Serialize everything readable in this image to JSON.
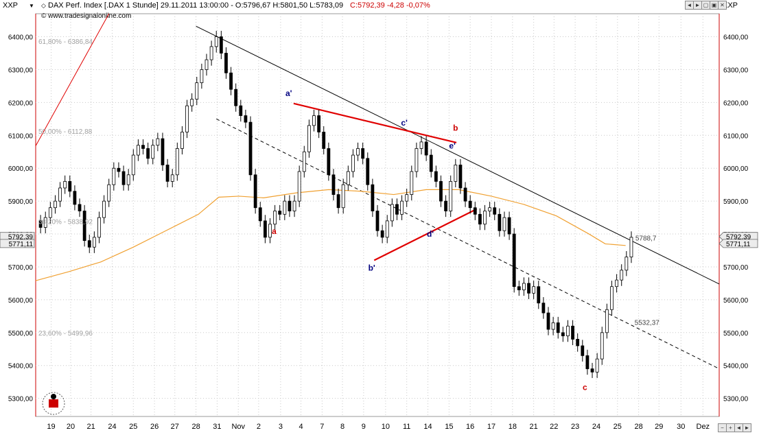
{
  "header": {
    "symbol_left": "XXP",
    "symbol_right": "XXP",
    "dropdown_arrow": "▼",
    "info_prefix": "DAX Perf. Index [.DAX  1 Stunde] 29.11.2011 13:00:00 - O:5796,67 H:5801,50 L:5783,09",
    "info_close": "C:5792,39 -4,28 -0,07%",
    "source": "www.tradesignalonline.com",
    "window_controls": [
      "◄",
      "►",
      "▢",
      "▣",
      "✕"
    ],
    "bottom_controls": [
      "−",
      "+",
      "◄",
      "►"
    ]
  },
  "chart_data": {
    "type": "candlestick",
    "title": "DAX Perf. Index [.DAX  1 Stunde]",
    "ylim": [
      5245,
      6470
    ],
    "y_ticks": [
      5300,
      5400,
      5500,
      5600,
      5700,
      5800,
      5900,
      6000,
      6100,
      6200,
      6300,
      6400
    ],
    "y_tick_labels": [
      "5300,00",
      "5400,00",
      "5500,00",
      "5600,00",
      "5700,00",
      "5800,00",
      "5900,00",
      "6000,00",
      "6100,00",
      "6200,00",
      "6300,00",
      "6400,00"
    ],
    "x_ticks": [
      "19",
      "20",
      "21",
      "24",
      "25",
      "26",
      "27",
      "28",
      "31",
      "Nov",
      "2",
      "3",
      "4",
      "7",
      "8",
      "9",
      "10",
      "11",
      "14",
      "15",
      "16",
      "17",
      "18",
      "21",
      "22",
      "23",
      "24",
      "25",
      "28",
      "29",
      "30",
      "Dez"
    ],
    "x_tick_pos": [
      1.9,
      4.3,
      6.8,
      9.4,
      12.0,
      14.6,
      17.1,
      19.7,
      22.3,
      24.9,
      27.4,
      30.1,
      32.6,
      35.2,
      37.7,
      40.3,
      43.0,
      45.6,
      48.2,
      50.8,
      53.4,
      56.0,
      58.6,
      61.2,
      63.7,
      66.3,
      68.9,
      71.5,
      74.1,
      76.6,
      79.3,
      82.0
    ],
    "x_range": [
      0,
      84
    ],
    "candles_close_path": [
      [
        0.0,
        5840
      ],
      [
        0.6,
        5820
      ],
      [
        1.2,
        5850
      ],
      [
        1.8,
        5880
      ],
      [
        2.4,
        5900
      ],
      [
        3.0,
        5940
      ],
      [
        3.6,
        5960
      ],
      [
        4.2,
        5930
      ],
      [
        4.8,
        5890
      ],
      [
        5.4,
        5870
      ],
      [
        6.0,
        5780
      ],
      [
        6.6,
        5760
      ],
      [
        7.2,
        5790
      ],
      [
        7.8,
        5850
      ],
      [
        8.4,
        5900
      ],
      [
        9.0,
        5950
      ],
      [
        9.6,
        6000
      ],
      [
        10.2,
        5990
      ],
      [
        10.8,
        5950
      ],
      [
        11.4,
        5980
      ],
      [
        12.0,
        6040
      ],
      [
        12.6,
        6070
      ],
      [
        13.2,
        6060
      ],
      [
        13.8,
        6030
      ],
      [
        14.4,
        6070
      ],
      [
        15.0,
        6090
      ],
      [
        15.6,
        6010
      ],
      [
        16.2,
        5960
      ],
      [
        16.8,
        5980
      ],
      [
        17.4,
        6060
      ],
      [
        18.0,
        6110
      ],
      [
        18.6,
        6190
      ],
      [
        19.2,
        6210
      ],
      [
        19.8,
        6260
      ],
      [
        20.4,
        6300
      ],
      [
        21.0,
        6330
      ],
      [
        21.6,
        6370
      ],
      [
        22.2,
        6400
      ],
      [
        22.8,
        6350
      ],
      [
        23.4,
        6290
      ],
      [
        24.0,
        6240
      ],
      [
        24.6,
        6190
      ],
      [
        25.2,
        6160
      ],
      [
        25.8,
        6140
      ],
      [
        26.4,
        5980
      ],
      [
        27.0,
        5880
      ],
      [
        27.6,
        5840
      ],
      [
        28.2,
        5790
      ],
      [
        28.8,
        5830
      ],
      [
        29.4,
        5870
      ],
      [
        30.0,
        5860
      ],
      [
        30.6,
        5900
      ],
      [
        31.2,
        5870
      ],
      [
        31.8,
        5900
      ],
      [
        32.4,
        5990
      ],
      [
        33.0,
        6050
      ],
      [
        33.6,
        6130
      ],
      [
        34.2,
        6160
      ],
      [
        34.8,
        6110
      ],
      [
        35.4,
        6060
      ],
      [
        36.0,
        5980
      ],
      [
        36.6,
        5920
      ],
      [
        37.2,
        5880
      ],
      [
        37.8,
        5950
      ],
      [
        38.4,
        5990
      ],
      [
        39.0,
        6040
      ],
      [
        39.6,
        6060
      ],
      [
        40.2,
        6030
      ],
      [
        40.8,
        5950
      ],
      [
        41.4,
        5870
      ],
      [
        42.0,
        5810
      ],
      [
        42.6,
        5790
      ],
      [
        43.2,
        5840
      ],
      [
        43.8,
        5890
      ],
      [
        44.4,
        5860
      ],
      [
        45.0,
        5900
      ],
      [
        45.6,
        5920
      ],
      [
        46.2,
        5990
      ],
      [
        46.8,
        6060
      ],
      [
        47.4,
        6080
      ],
      [
        48.0,
        6040
      ],
      [
        48.6,
        5990
      ],
      [
        49.2,
        5960
      ],
      [
        49.8,
        5900
      ],
      [
        50.4,
        5870
      ],
      [
        51.0,
        5960
      ],
      [
        51.6,
        6010
      ],
      [
        52.2,
        5940
      ],
      [
        52.8,
        5900
      ],
      [
        53.4,
        5880
      ],
      [
        54.0,
        5860
      ],
      [
        54.6,
        5830
      ],
      [
        55.2,
        5870
      ],
      [
        55.8,
        5880
      ],
      [
        56.4,
        5860
      ],
      [
        57.0,
        5810
      ],
      [
        57.6,
        5850
      ],
      [
        58.2,
        5800
      ],
      [
        58.8,
        5640
      ],
      [
        59.4,
        5630
      ],
      [
        60.0,
        5650
      ],
      [
        60.6,
        5620
      ],
      [
        61.2,
        5640
      ],
      [
        61.8,
        5590
      ],
      [
        62.4,
        5560
      ],
      [
        63.0,
        5510
      ],
      [
        63.6,
        5530
      ],
      [
        64.2,
        5500
      ],
      [
        64.8,
        5490
      ],
      [
        65.4,
        5520
      ],
      [
        66.0,
        5480
      ],
      [
        66.6,
        5460
      ],
      [
        67.2,
        5430
      ],
      [
        67.8,
        5390
      ],
      [
        68.4,
        5380
      ],
      [
        69.0,
        5420
      ],
      [
        69.6,
        5500
      ],
      [
        70.2,
        5570
      ],
      [
        70.8,
        5640
      ],
      [
        71.4,
        5660
      ],
      [
        72.0,
        5690
      ],
      [
        72.6,
        5730
      ],
      [
        73.2,
        5790
      ]
    ],
    "sma_line": [
      [
        0.0,
        5658
      ],
      [
        4.0,
        5685
      ],
      [
        8.0,
        5715
      ],
      [
        12.0,
        5760
      ],
      [
        16.0,
        5810
      ],
      [
        20.0,
        5860
      ],
      [
        22.5,
        5912
      ],
      [
        25.0,
        5915
      ],
      [
        28.0,
        5910
      ],
      [
        32.0,
        5925
      ],
      [
        36.0,
        5935
      ],
      [
        40.0,
        5930
      ],
      [
        44.0,
        5920
      ],
      [
        48.0,
        5935
      ],
      [
        52.0,
        5935
      ],
      [
        56.0,
        5915
      ],
      [
        60.0,
        5890
      ],
      [
        64.0,
        5855
      ],
      [
        68.0,
        5800
      ],
      [
        70.0,
        5770
      ],
      [
        72.5,
        5765
      ]
    ],
    "upper_trendline": [
      [
        19.7,
        6432
      ],
      [
        84,
        5648
      ]
    ],
    "lower_dashed_trendline": [
      [
        22.2,
        6150
      ],
      [
        84,
        5390
      ]
    ],
    "steep_red_line": [
      [
        0.0,
        6068
      ],
      [
        9.0,
        6470
      ]
    ],
    "red_triangle_upper": [
      [
        31.7,
        6197
      ],
      [
        51.7,
        6078
      ]
    ],
    "red_triangle_lower": [
      [
        41.6,
        5720
      ],
      [
        54.2,
        5876
      ]
    ],
    "wave_labels": [
      {
        "text": "a'",
        "x": 31.1,
        "y": 6220,
        "color": "#000080"
      },
      {
        "text": "c'",
        "x": 45.3,
        "y": 6130,
        "color": "#000080"
      },
      {
        "text": "b",
        "x": 51.6,
        "y": 6114,
        "color": "#cc0000"
      },
      {
        "text": "e'",
        "x": 51.2,
        "y": 6060,
        "color": "#000080"
      },
      {
        "text": "a",
        "x": 29.3,
        "y": 5800,
        "color": "#cc0000"
      },
      {
        "text": "d'",
        "x": 48.5,
        "y": 5792,
        "color": "#000080"
      },
      {
        "text": "b'",
        "x": 41.3,
        "y": 5688,
        "color": "#000080"
      },
      {
        "text": "c",
        "x": 67.5,
        "y": 5325,
        "color": "#cc0000"
      }
    ],
    "fib_labels": [
      {
        "text": "61,80% - 6386,84",
        "y": 6386.84
      },
      {
        "text": "50,00% - 6112,88",
        "y": 6112.88
      },
      {
        "text": "38,20% - 5838,92",
        "y": 5838.92
      },
      {
        "text": "23,60% - 5499,96",
        "y": 5499.96
      }
    ],
    "annotations": [
      {
        "text": "5788,7",
        "x": 73.7,
        "y": 5788.7
      },
      {
        "text": "5532,37",
        "x": 73.6,
        "y": 5532.37
      }
    ],
    "price_tags": [
      {
        "text": "5792,39",
        "y": 5792.39
      },
      {
        "text": "5771,11",
        "y": 5771.11
      }
    ],
    "colors": {
      "candle": "#000000",
      "sma": "#f0a030",
      "trend": "#000000",
      "red_lines": "#e00000",
      "grid": "#c8c8c8",
      "axis_red": "#cc0000"
    }
  }
}
